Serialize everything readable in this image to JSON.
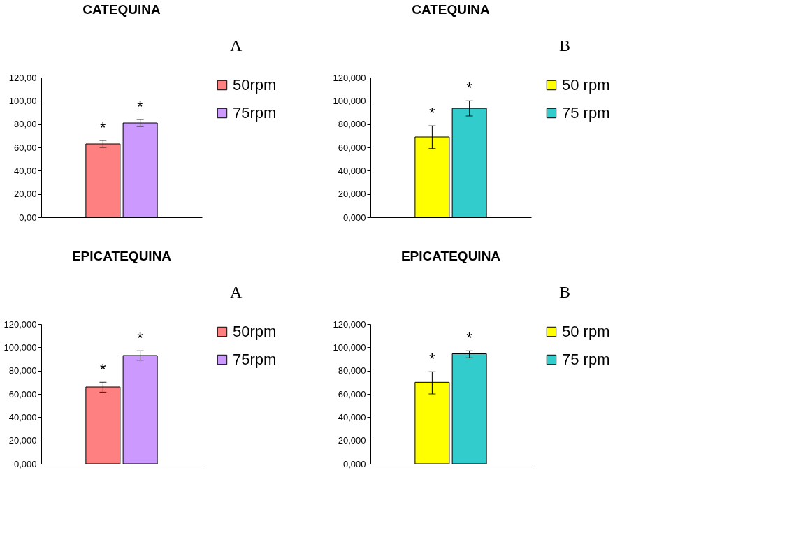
{
  "chart_data": [
    {
      "type": "bar",
      "title": "CATEQUINA",
      "annotations": [
        "A"
      ],
      "categories": [
        null
      ],
      "legend": "right",
      "tick_labels": "y",
      "ylim": [
        0,
        120
      ],
      "yticks": [
        {
          "value": 0,
          "label": "0,00"
        },
        {
          "value": 20,
          "label": "20,00"
        },
        {
          "value": 40,
          "label": "40,00"
        },
        {
          "value": 60,
          "label": "60,00"
        },
        {
          "value": 80,
          "label": "80,00"
        },
        {
          "value": 100,
          "label": "100,00"
        },
        {
          "value": 120,
          "label": "120,00"
        }
      ],
      "series": [
        {
          "name": "50rpm",
          "color": "#ff8080",
          "values": [
            63
          ],
          "errors": [
            3
          ],
          "value_labels": [
            "*"
          ]
        },
        {
          "name": "75rpm",
          "color": "#cc99ff",
          "values": [
            81
          ],
          "errors": [
            3
          ],
          "value_labels": [
            "*"
          ]
        }
      ]
    },
    {
      "type": "bar",
      "title": "CATEQUINA",
      "annotations": [
        "B"
      ],
      "categories": [
        null
      ],
      "legend": "right",
      "tick_labels": "y",
      "ylim": [
        0,
        120
      ],
      "yticks": [
        {
          "value": 0,
          "label": "0,000"
        },
        {
          "value": 20,
          "label": "20,000"
        },
        {
          "value": 40,
          "label": "40,000"
        },
        {
          "value": 60,
          "label": "60,000"
        },
        {
          "value": 80,
          "label": "80,000"
        },
        {
          "value": 100,
          "label": "100,000"
        },
        {
          "value": 120,
          "label": "120,000"
        }
      ],
      "series": [
        {
          "name": "50 rpm",
          "color": "#ffff00",
          "values": [
            69
          ],
          "errors": [
            [
              59,
              78.5
            ]
          ],
          "value_labels": [
            "*"
          ]
        },
        {
          "name": "75 rpm",
          "color": "#33cccc",
          "values": [
            93.5
          ],
          "errors": [
            [
              87,
              100
            ]
          ],
          "value_labels": [
            "*"
          ]
        }
      ]
    },
    {
      "type": "bar",
      "title": "EPICATEQUINA",
      "annotations": [
        "A"
      ],
      "categories": [
        null
      ],
      "legend": "right",
      "tick_labels": "y",
      "ylim": [
        0,
        120
      ],
      "yticks": [
        {
          "value": 0,
          "label": "0,000"
        },
        {
          "value": 20,
          "label": "20,000"
        },
        {
          "value": 40,
          "label": "40,000"
        },
        {
          "value": 60,
          "label": "60,000"
        },
        {
          "value": 80,
          "label": "80,000"
        },
        {
          "value": 100,
          "label": "100,000"
        },
        {
          "value": 120,
          "label": "120,000"
        }
      ],
      "series": [
        {
          "name": "50rpm",
          "color": "#ff8080",
          "values": [
            66
          ],
          "errors": [
            [
              61.5,
              70
            ]
          ],
          "value_labels": [
            "*"
          ]
        },
        {
          "name": "75rpm",
          "color": "#cc99ff",
          "values": [
            93
          ],
          "errors": [
            [
              89,
              97
            ]
          ],
          "value_labels": [
            "*"
          ]
        }
      ]
    },
    {
      "type": "bar",
      "title": "EPICATEQUINA",
      "annotations": [
        "B"
      ],
      "categories": [
        null
      ],
      "legend": "right",
      "tick_labels": "y",
      "ylim": [
        0,
        120
      ],
      "yticks": [
        {
          "value": 0,
          "label": "0,000"
        },
        {
          "value": 20,
          "label": "20,000"
        },
        {
          "value": 40,
          "label": "40,000"
        },
        {
          "value": 60,
          "label": "60,000"
        },
        {
          "value": 80,
          "label": "80,000"
        },
        {
          "value": 100,
          "label": "100,000"
        },
        {
          "value": 120,
          "label": "120,000"
        }
      ],
      "series": [
        {
          "name": "50 rpm",
          "color": "#ffff00",
          "values": [
            70
          ],
          "errors": [
            [
              60,
              79
            ]
          ],
          "value_labels": [
            "*"
          ]
        },
        {
          "name": "75 rpm",
          "color": "#33cccc",
          "values": [
            94.5
          ],
          "errors": [
            [
              91,
              97
            ]
          ],
          "value_labels": [
            "*"
          ]
        }
      ]
    }
  ]
}
